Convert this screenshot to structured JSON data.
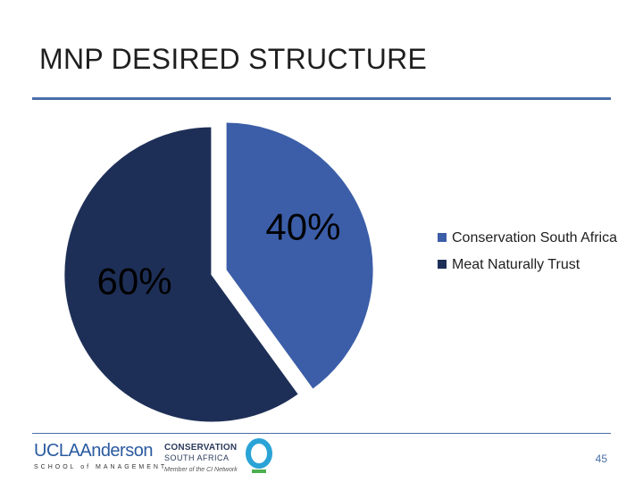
{
  "slide": {
    "title": "MNP DESIRED STRUCTURE",
    "page_number": "45"
  },
  "chart_data": {
    "type": "pie",
    "categories": [
      "Conservation South Africa",
      "Meat Naturally Trust"
    ],
    "values": [
      40,
      60
    ],
    "data_labels": [
      "40%",
      "60%"
    ],
    "colors": [
      "#3c5ea8",
      "#1e2f57"
    ],
    "legend_position": "right"
  },
  "legend": {
    "items": [
      {
        "label": "Conservation South Africa",
        "color": "#3c5ea8"
      },
      {
        "label": "Meat Naturally Trust",
        "color": "#1e2f57"
      }
    ]
  },
  "footer": {
    "ucla_logo": "UCLAAnderson",
    "ucla_tagline": "SCHOOL of MANAGEMENT",
    "csa_name": "CONSERVATION",
    "csa_sub": "SOUTH AFRICA",
    "csa_member": "Member of the CI Network"
  }
}
